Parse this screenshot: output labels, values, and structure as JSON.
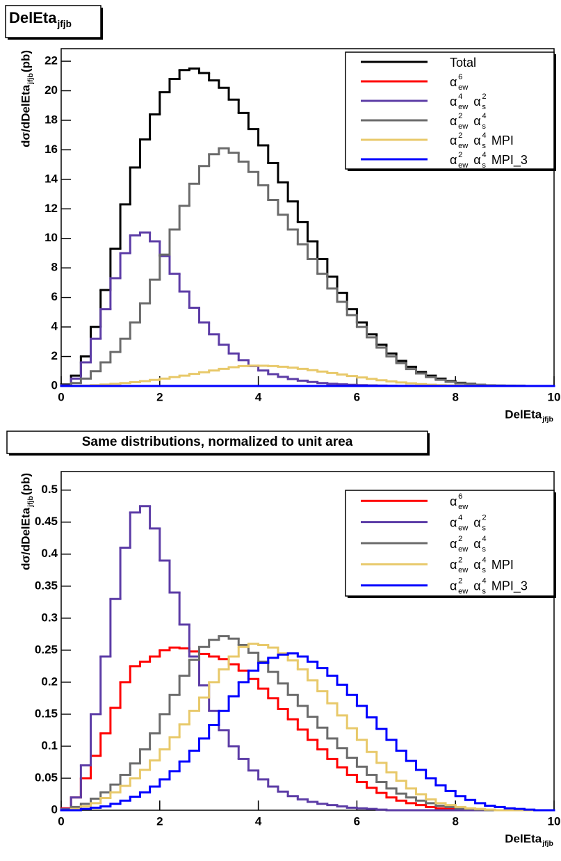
{
  "chart_data": [
    {
      "type": "histogram",
      "title": {
        "base": "DelEta",
        "sub": "jfjb"
      },
      "x_label": {
        "base": "DelEta",
        "sub": "jfjb"
      },
      "y_label": {
        "base": "dσ/dDelEta",
        "sub": "jfjb",
        "tail": " (pb)"
      },
      "xlim": [
        0,
        10
      ],
      "ylim": [
        0,
        22.85
      ],
      "xticks": [
        0,
        2,
        4,
        6,
        8,
        10
      ],
      "yticks": [
        0,
        2,
        4,
        6,
        8,
        10,
        12,
        14,
        16,
        18,
        20,
        22
      ],
      "bins": [
        0,
        0.2,
        0.4,
        0.6,
        0.8,
        1,
        1.2,
        1.4,
        1.6,
        1.8,
        2,
        2.2,
        2.4,
        2.6,
        2.8,
        3,
        3.2,
        3.4,
        3.6,
        3.8,
        4,
        4.2,
        4.4,
        4.6,
        4.8,
        5,
        5.2,
        5.4,
        5.6,
        5.8,
        6,
        6.2,
        6.4,
        6.6,
        6.8,
        7,
        7.2,
        7.4,
        7.6,
        7.8,
        8,
        8.2,
        8.4,
        8.6,
        8.8,
        9,
        9.2,
        9.4,
        9.6,
        9.8,
        10
      ],
      "series": [
        {
          "name": [
            {
              "base": "Total"
            }
          ],
          "color": "#000000",
          "values": [
            0.1,
            0.7,
            2.0,
            4.0,
            6.5,
            9.3,
            12.3,
            14.8,
            16.7,
            18.4,
            19.9,
            20.8,
            21.4,
            21.5,
            21.2,
            20.7,
            20.2,
            19.4,
            18.5,
            17.4,
            16.3,
            15.1,
            13.8,
            12.5,
            11.1,
            9.8,
            8.6,
            7.4,
            6.3,
            5.2,
            4.3,
            3.5,
            2.8,
            2.2,
            1.7,
            1.3,
            0.95,
            0.7,
            0.5,
            0.33,
            0.22,
            0.14,
            0.08,
            0.05,
            0.03,
            0.02,
            0.01,
            0,
            0,
            0
          ]
        },
        {
          "name": [
            {
              "base": "α",
              "sub": "ew",
              "sup": "6"
            }
          ],
          "color": "#ff0000",
          "values": [
            0,
            0,
            0,
            0,
            0,
            0,
            0,
            0,
            0,
            0,
            0,
            0,
            0,
            0,
            0,
            0,
            0,
            0,
            0,
            0,
            0,
            0,
            0,
            0,
            0,
            0,
            0,
            0,
            0,
            0,
            0,
            0,
            0,
            0,
            0,
            0,
            0,
            0,
            0,
            0,
            0,
            0,
            0,
            0,
            0,
            0,
            0,
            0,
            0,
            0
          ]
        },
        {
          "name": [
            {
              "base": "α",
              "sub": "ew",
              "sup": "4"
            },
            {
              "base": "α",
              "sub": "s",
              "sup": "2"
            }
          ],
          "color": "#5c3ca6",
          "values": [
            0.05,
            0.5,
            1.6,
            3.2,
            5.2,
            7.3,
            9.0,
            10.2,
            10.4,
            9.8,
            8.8,
            7.6,
            6.4,
            5.3,
            4.3,
            3.5,
            2.8,
            2.2,
            1.75,
            1.35,
            1.05,
            0.8,
            0.62,
            0.47,
            0.36,
            0.27,
            0.2,
            0.15,
            0.11,
            0.08,
            0.06,
            0.04,
            0.03,
            0.02,
            0.01,
            0.01,
            0,
            0,
            0,
            0,
            0,
            0,
            0,
            0,
            0,
            0,
            0,
            0,
            0,
            0
          ]
        },
        {
          "name": [
            {
              "base": "α",
              "sub": "ew",
              "sup": "2"
            },
            {
              "base": "α",
              "sub": "s",
              "sup": "4"
            }
          ],
          "color": "#6b6b6b",
          "values": [
            0.02,
            0.2,
            0.5,
            1.0,
            1.6,
            2.3,
            3.2,
            4.3,
            5.6,
            7.2,
            8.9,
            10.6,
            12.2,
            13.7,
            14.9,
            15.7,
            16.1,
            15.8,
            15.2,
            14.5,
            13.6,
            12.6,
            11.6,
            10.6,
            9.6,
            8.6,
            7.6,
            6.6,
            5.7,
            4.8,
            4.0,
            3.3,
            2.6,
            2.0,
            1.55,
            1.15,
            0.85,
            0.6,
            0.42,
            0.28,
            0.18,
            0.11,
            0.07,
            0.04,
            0.02,
            0.01,
            0.01,
            0,
            0,
            0
          ]
        },
        {
          "name": [
            {
              "base": "α",
              "sub": "ew",
              "sup": "2"
            },
            {
              "base": "α",
              "sub": "s",
              "sup": "4"
            },
            {
              "base": "MPI"
            }
          ],
          "color": "#e8c96a",
          "values": [
            0,
            0.01,
            0.03,
            0.06,
            0.1,
            0.15,
            0.2,
            0.26,
            0.33,
            0.41,
            0.5,
            0.6,
            0.7,
            0.82,
            0.93,
            1.05,
            1.16,
            1.27,
            1.35,
            1.38,
            1.37,
            1.35,
            1.3,
            1.24,
            1.16,
            1.07,
            0.98,
            0.88,
            0.78,
            0.68,
            0.58,
            0.48,
            0.39,
            0.31,
            0.24,
            0.18,
            0.13,
            0.09,
            0.06,
            0.04,
            0.03,
            0.02,
            0.01,
            0.01,
            0,
            0,
            0,
            0,
            0,
            0
          ]
        },
        {
          "name": [
            {
              "base": "α",
              "sub": "ew",
              "sup": "2"
            },
            {
              "base": "α",
              "sub": "s",
              "sup": "4"
            },
            {
              "base": "MPI_3"
            }
          ],
          "color": "#0000ff",
          "values": [
            0,
            0,
            0,
            0,
            0,
            0,
            0,
            0,
            0,
            0,
            0,
            0,
            0,
            0,
            0,
            0,
            0,
            0,
            0,
            0,
            0,
            0,
            0,
            0,
            0,
            0,
            0,
            0,
            0,
            0,
            0,
            0,
            0,
            0,
            0,
            0,
            0,
            0,
            0,
            0,
            0,
            0,
            0,
            0,
            0,
            0,
            0,
            0,
            0,
            0
          ]
        }
      ]
    },
    {
      "type": "histogram",
      "title": "Same distributions, normalized to unit area",
      "x_label": {
        "base": "DelEta",
        "sub": "jfjb"
      },
      "y_label": {
        "base": "dσ/dDelEta",
        "sub": "jfjb",
        "tail": " (pb)"
      },
      "xlim": [
        0,
        10
      ],
      "ylim": [
        0,
        0.529
      ],
      "xticks": [
        0,
        2,
        4,
        6,
        8,
        10
      ],
      "yticks": [
        0,
        0.05,
        0.1,
        0.15,
        0.2,
        0.25,
        0.3,
        0.35,
        0.4,
        0.45,
        0.5
      ],
      "bins": [
        0,
        0.2,
        0.4,
        0.6,
        0.8,
        1,
        1.2,
        1.4,
        1.6,
        1.8,
        2,
        2.2,
        2.4,
        2.6,
        2.8,
        3,
        3.2,
        3.4,
        3.6,
        3.8,
        4,
        4.2,
        4.4,
        4.6,
        4.8,
        5,
        5.2,
        5.4,
        5.6,
        5.8,
        6,
        6.2,
        6.4,
        6.6,
        6.8,
        7,
        7.2,
        7.4,
        7.6,
        7.8,
        8,
        8.2,
        8.4,
        8.6,
        8.8,
        9,
        9.2,
        9.4,
        9.6,
        9.8,
        10
      ],
      "series": [
        {
          "name": [
            {
              "base": "α",
              "sub": "ew",
              "sup": "6"
            }
          ],
          "color": "#ff0000",
          "values": [
            0.003,
            0.02,
            0.05,
            0.085,
            0.12,
            0.16,
            0.2,
            0.225,
            0.232,
            0.24,
            0.25,
            0.254,
            0.253,
            0.248,
            0.244,
            0.24,
            0.236,
            0.228,
            0.218,
            0.205,
            0.19,
            0.175,
            0.158,
            0.142,
            0.126,
            0.11,
            0.095,
            0.08,
            0.067,
            0.055,
            0.044,
            0.035,
            0.027,
            0.02,
            0.015,
            0.011,
            0.008,
            0.005,
            0.003,
            0.002,
            0.001,
            0,
            0,
            0,
            0,
            0,
            0,
            0,
            0,
            0
          ]
        },
        {
          "name": [
            {
              "base": "α",
              "sub": "ew",
              "sup": "4"
            },
            {
              "base": "α",
              "sub": "s",
              "sup": "2"
            }
          ],
          "color": "#5c3ca6",
          "values": [
            0.002,
            0.02,
            0.07,
            0.15,
            0.24,
            0.33,
            0.41,
            0.465,
            0.475,
            0.44,
            0.39,
            0.34,
            0.29,
            0.24,
            0.195,
            0.155,
            0.125,
            0.1,
            0.08,
            0.062,
            0.048,
            0.037,
            0.029,
            0.022,
            0.017,
            0.013,
            0.01,
            0.008,
            0.006,
            0.004,
            0.003,
            0.002,
            0.001,
            0,
            0,
            0,
            0,
            0,
            0,
            0,
            0,
            0,
            0,
            0,
            0,
            0,
            0,
            0,
            0,
            0
          ]
        },
        {
          "name": [
            {
              "base": "α",
              "sub": "ew",
              "sup": "2"
            },
            {
              "base": "α",
              "sub": "s",
              "sup": "4"
            }
          ],
          "color": "#6b6b6b",
          "values": [
            0.001,
            0.005,
            0.01,
            0.018,
            0.028,
            0.04,
            0.055,
            0.073,
            0.095,
            0.12,
            0.15,
            0.18,
            0.21,
            0.235,
            0.255,
            0.266,
            0.272,
            0.268,
            0.258,
            0.246,
            0.232,
            0.216,
            0.198,
            0.18,
            0.163,
            0.146,
            0.129,
            0.112,
            0.097,
            0.082,
            0.068,
            0.055,
            0.044,
            0.034,
            0.026,
            0.02,
            0.015,
            0.011,
            0.007,
            0.005,
            0.003,
            0.002,
            0.001,
            0,
            0,
            0,
            0,
            0,
            0,
            0
          ]
        },
        {
          "name": [
            {
              "base": "α",
              "sub": "ew",
              "sup": "2"
            },
            {
              "base": "α",
              "sub": "s",
              "sup": "4"
            },
            {
              "base": "MPI"
            }
          ],
          "color": "#e8c96a",
          "values": [
            0,
            0.002,
            0.006,
            0.011,
            0.019,
            0.028,
            0.038,
            0.05,
            0.063,
            0.078,
            0.095,
            0.114,
            0.134,
            0.155,
            0.176,
            0.2,
            0.22,
            0.24,
            0.255,
            0.26,
            0.258,
            0.254,
            0.245,
            0.234,
            0.22,
            0.203,
            0.186,
            0.167,
            0.148,
            0.128,
            0.11,
            0.091,
            0.074,
            0.059,
            0.046,
            0.034,
            0.025,
            0.017,
            0.011,
            0.008,
            0.005,
            0.003,
            0.002,
            0.001,
            0,
            0,
            0,
            0,
            0,
            0
          ]
        },
        {
          "name": [
            {
              "base": "α",
              "sub": "ew",
              "sup": "2"
            },
            {
              "base": "α",
              "sub": "s",
              "sup": "4"
            },
            {
              "base": "MPI_3"
            }
          ],
          "color": "#0000ff",
          "values": [
            0,
            0,
            0.002,
            0.004,
            0.006,
            0.01,
            0.015,
            0.021,
            0.028,
            0.037,
            0.048,
            0.061,
            0.076,
            0.093,
            0.112,
            0.133,
            0.155,
            0.178,
            0.2,
            0.218,
            0.23,
            0.238,
            0.243,
            0.245,
            0.24,
            0.232,
            0.222,
            0.21,
            0.196,
            0.18,
            0.163,
            0.145,
            0.127,
            0.11,
            0.093,
            0.077,
            0.063,
            0.05,
            0.039,
            0.03,
            0.022,
            0.016,
            0.011,
            0.007,
            0.005,
            0.003,
            0.002,
            0.001,
            0,
            0
          ]
        }
      ]
    }
  ]
}
